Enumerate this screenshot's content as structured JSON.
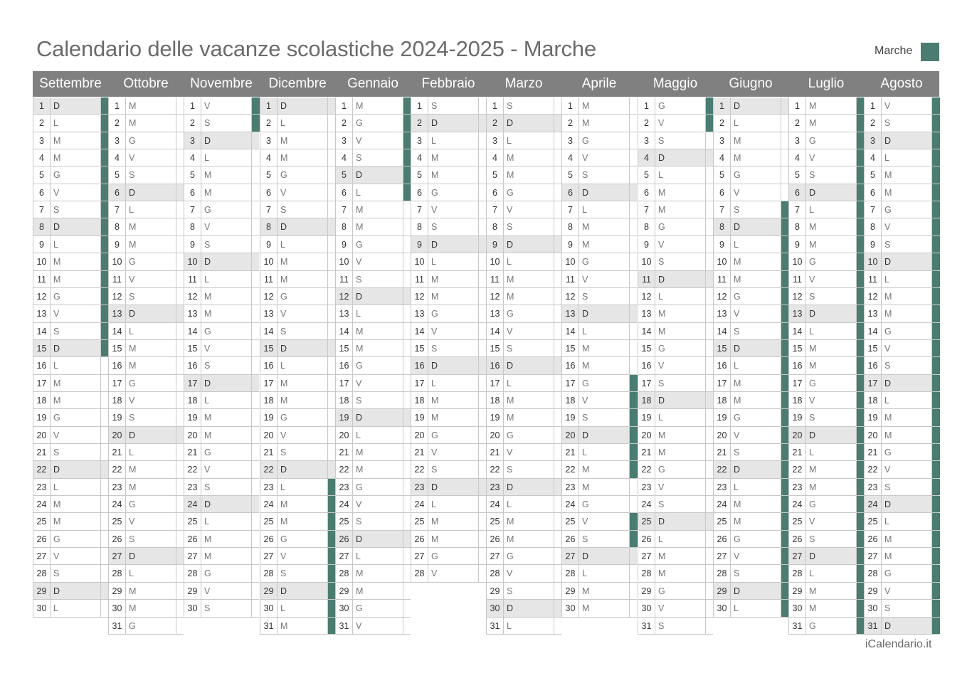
{
  "title": "Calendario delle vacanze scolastiche 2024-2025 - Marche",
  "legend": {
    "label": "Marche",
    "color": "#4a7c72"
  },
  "footer": "iCalendario.it",
  "months": [
    {
      "name": "Settembre",
      "days": 30,
      "first_weekday": 0,
      "holidays": [
        1,
        2,
        3,
        4,
        5,
        6,
        7,
        8,
        9,
        10,
        11,
        12,
        13,
        14,
        15
      ]
    },
    {
      "name": "Ottobre",
      "days": 31,
      "first_weekday": 2,
      "holidays": []
    },
    {
      "name": "Novembre",
      "days": 30,
      "first_weekday": 5,
      "holidays": [
        1,
        2
      ]
    },
    {
      "name": "Dicembre",
      "days": 31,
      "first_weekday": 0,
      "holidays": [
        23,
        24,
        25,
        26,
        27,
        28,
        29,
        30,
        31
      ]
    },
    {
      "name": "Gennaio",
      "days": 31,
      "first_weekday": 3,
      "holidays": [
        1,
        2,
        3,
        4,
        5,
        6
      ]
    },
    {
      "name": "Febbraio",
      "days": 28,
      "first_weekday": 6,
      "holidays": []
    },
    {
      "name": "Marzo",
      "days": 31,
      "first_weekday": 6,
      "holidays": []
    },
    {
      "name": "Aprile",
      "days": 30,
      "first_weekday": 2,
      "holidays": [
        17,
        18,
        19,
        20,
        21,
        22,
        25,
        26
      ]
    },
    {
      "name": "Maggio",
      "days": 31,
      "first_weekday": 4,
      "holidays": [
        1,
        2
      ]
    },
    {
      "name": "Giugno",
      "days": 30,
      "first_weekday": 0,
      "holidays": [
        7,
        8,
        9,
        10,
        11,
        12,
        13,
        14,
        15,
        16,
        17,
        18,
        19,
        20,
        21,
        22,
        23,
        24,
        25,
        26,
        27,
        28,
        29,
        30
      ]
    },
    {
      "name": "Luglio",
      "days": 31,
      "first_weekday": 2,
      "holidays": [
        1,
        2,
        3,
        4,
        5,
        6,
        7,
        8,
        9,
        10,
        11,
        12,
        13,
        14,
        15,
        16,
        17,
        18,
        19,
        20,
        21,
        22,
        23,
        24,
        25,
        26,
        27,
        28,
        29,
        30,
        31
      ]
    },
    {
      "name": "Agosto",
      "days": 31,
      "first_weekday": 5,
      "holidays": [
        1,
        2,
        3,
        4,
        5,
        6,
        7,
        8,
        9,
        10,
        11,
        12,
        13,
        14,
        15,
        16,
        17,
        18,
        19,
        20,
        21,
        22,
        23,
        24,
        25,
        26,
        27,
        28,
        29,
        30,
        31
      ]
    }
  ],
  "weekday_letters": [
    "D",
    "L",
    "M",
    "M",
    "G",
    "V",
    "S"
  ]
}
